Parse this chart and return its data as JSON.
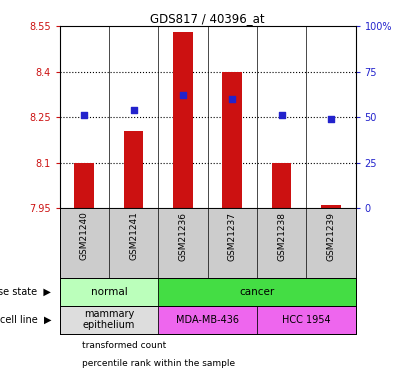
{
  "title": "GDS817 / 40396_at",
  "samples": [
    "GSM21240",
    "GSM21241",
    "GSM21236",
    "GSM21237",
    "GSM21238",
    "GSM21239"
  ],
  "bar_values": [
    8.1,
    8.205,
    8.53,
    8.4,
    8.1,
    7.96
  ],
  "bar_base": 7.95,
  "percentile_values": [
    51,
    54,
    62,
    60,
    51,
    49
  ],
  "ylim_left": [
    7.95,
    8.55
  ],
  "ylim_right": [
    0,
    100
  ],
  "yticks_left": [
    7.95,
    8.1,
    8.25,
    8.4,
    8.55
  ],
  "yticks_right": [
    0,
    25,
    50,
    75,
    100
  ],
  "ytick_labels_left": [
    "7.95",
    "8.1",
    "8.25",
    "8.4",
    "8.55"
  ],
  "ytick_labels_right": [
    "0",
    "25",
    "50",
    "75",
    "100%"
  ],
  "bar_color": "#cc1111",
  "dot_color": "#2222cc",
  "disease_state_groups": [
    {
      "label": "normal",
      "span": [
        0,
        2
      ],
      "color": "#bbffbb"
    },
    {
      "label": "cancer",
      "span": [
        2,
        6
      ],
      "color": "#44dd44"
    }
  ],
  "cell_line_groups": [
    {
      "label": "mammary\nepithelium",
      "span": [
        0,
        2
      ],
      "color": "#dddddd"
    },
    {
      "label": "MDA-MB-436",
      "span": [
        2,
        4
      ],
      "color": "#ee66ee"
    },
    {
      "label": "HCC 1954",
      "span": [
        4,
        6
      ],
      "color": "#ee66ee"
    }
  ],
  "legend_labels": [
    "transformed count",
    "percentile rank within the sample"
  ],
  "legend_colors": [
    "#cc1111",
    "#2222cc"
  ],
  "left_axis_color": "#cc1111",
  "right_axis_color": "#2222cc",
  "sample_bg_color": "#cccccc",
  "background_color": "#ffffff"
}
